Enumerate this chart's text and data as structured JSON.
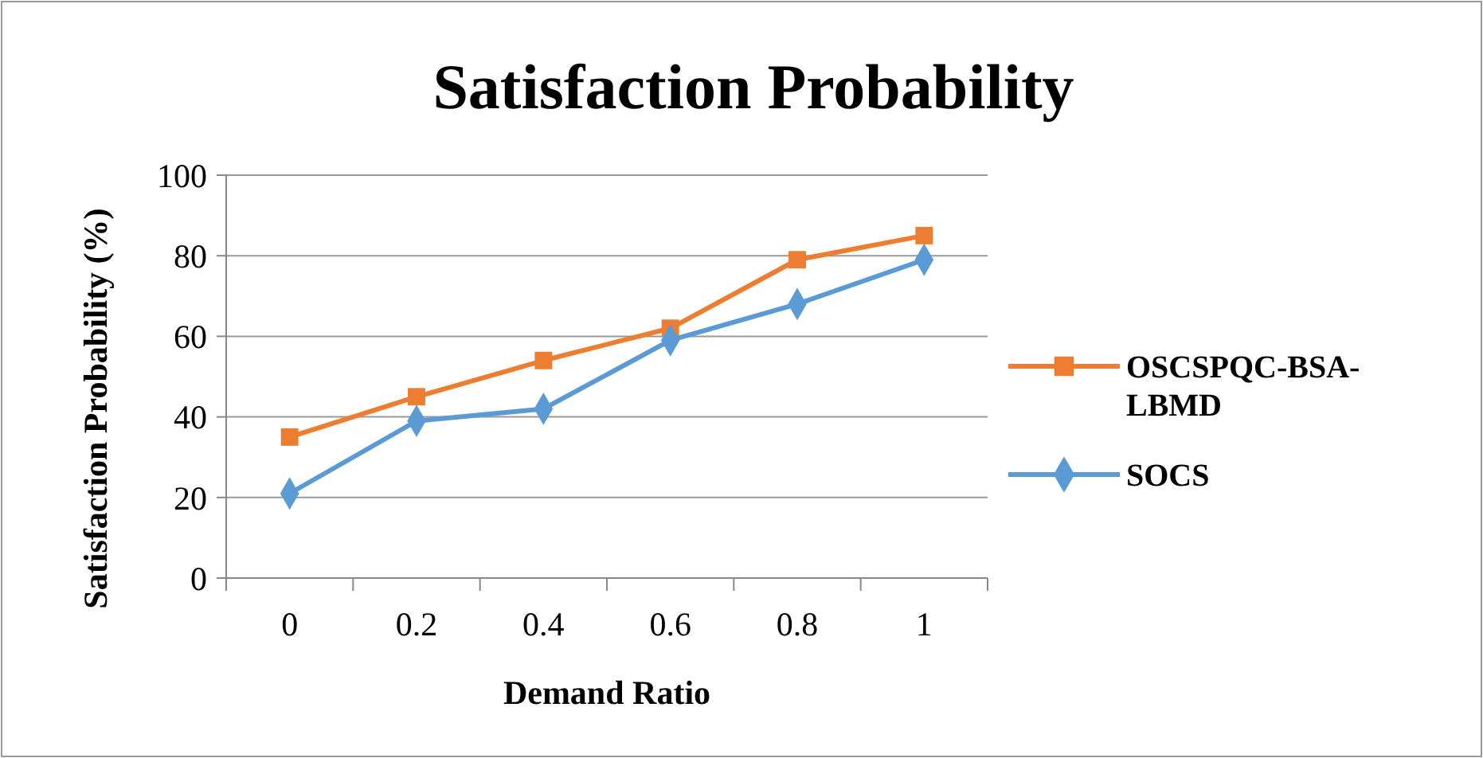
{
  "chart_data": {
    "type": "line",
    "title": "Satisfaction Probability",
    "xlabel": "Demand Ratio",
    "ylabel": "Satisfaction Probability  (%)",
    "categories": [
      "0",
      "0.2",
      "0.4",
      "0.6",
      "0.8",
      "1"
    ],
    "series": [
      {
        "name": "OSCSPQC-BSA-LBMD",
        "color": "#ed7d31",
        "marker": "square",
        "values": [
          35,
          45,
          54,
          62,
          79,
          85
        ]
      },
      {
        "name": "SOCS",
        "color": "#5b9bd5",
        "marker": "diamond",
        "values": [
          21,
          39,
          42,
          59,
          68,
          79
        ]
      }
    ],
    "ylim": [
      0,
      100
    ],
    "yticks": [
      0,
      20,
      40,
      60,
      80,
      100
    ],
    "grid": "y",
    "legend": "right"
  }
}
